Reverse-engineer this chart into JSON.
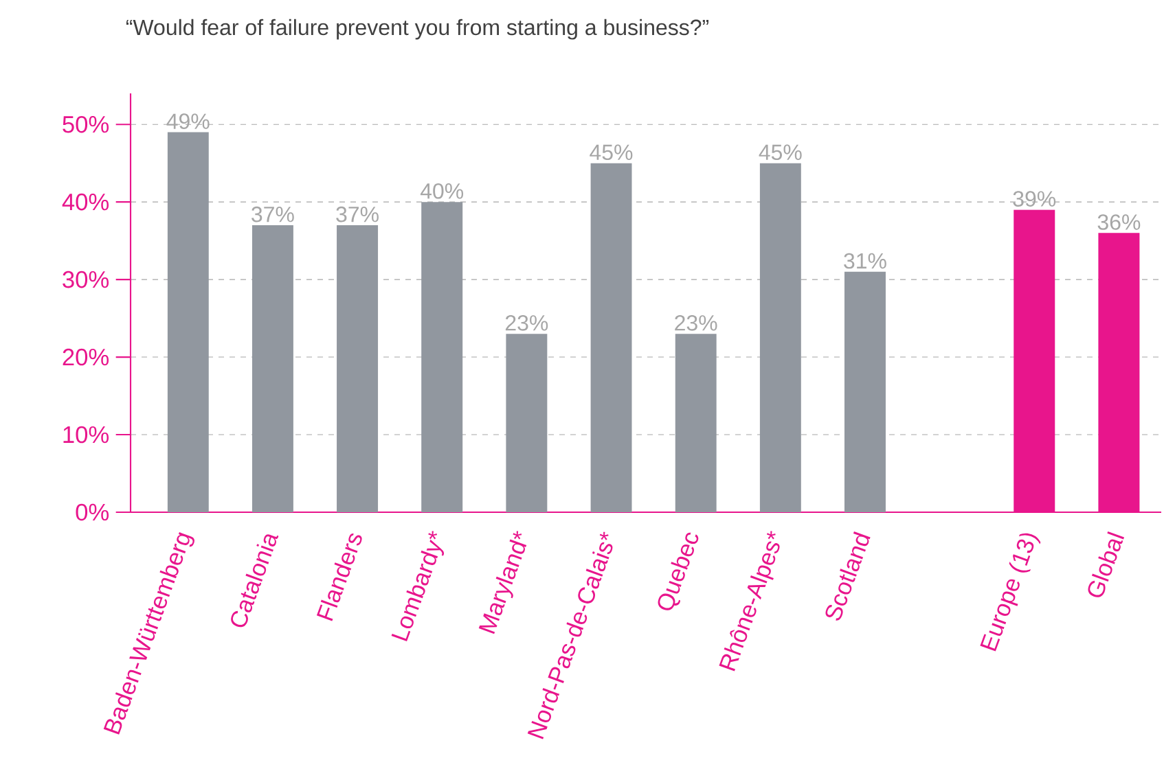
{
  "chart_data": {
    "type": "bar",
    "title": "“Would fear of failure prevent you from starting a business?”",
    "categories": [
      "Baden-Württemberg",
      "Catalonia",
      "Flanders",
      "Lombardy*",
      "Maryland*",
      "Nord-Pas-de-Calais*",
      "Quebec",
      "Rhône-Alpes*",
      "Scotland",
      null,
      "Europe (13)",
      "Global"
    ],
    "values": [
      49,
      37,
      37,
      40,
      23,
      45,
      23,
      45,
      31,
      null,
      39,
      36
    ],
    "value_labels": [
      "49%",
      "37%",
      "37%",
      "40%",
      "23%",
      "45%",
      "23%",
      "45%",
      "31%",
      null,
      "39%",
      "36%"
    ],
    "colors": [
      "#91979f",
      "#91979f",
      "#91979f",
      "#91979f",
      "#91979f",
      "#91979f",
      "#91979f",
      "#91979f",
      "#91979f",
      "#91979f",
      "#e8158c",
      "#e8158c"
    ],
    "ylim": [
      0,
      54
    ],
    "yticks": [
      {
        "value": 0,
        "label": "0%"
      },
      {
        "value": 10,
        "label": "10%"
      },
      {
        "value": 20,
        "label": "20%"
      },
      {
        "value": 30,
        "label": "30%"
      },
      {
        "value": 40,
        "label": "40%"
      },
      {
        "value": 50,
        "label": "50%"
      }
    ],
    "grid": "y"
  }
}
